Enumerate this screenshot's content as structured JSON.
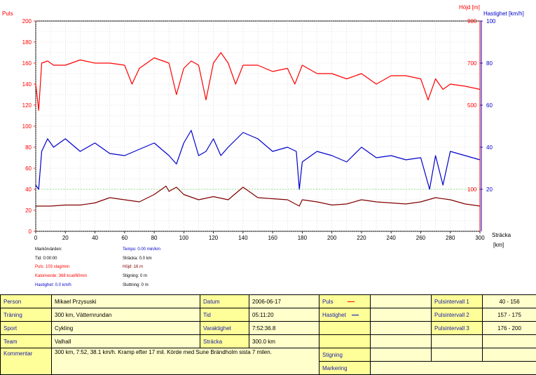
{
  "chart_data": {
    "type": "line",
    "xlabel": "Sträcka",
    "xunit": "[km]",
    "xlim": [
      0,
      300
    ],
    "xticks": [
      0,
      20,
      40,
      60,
      80,
      100,
      120,
      140,
      160,
      180,
      200,
      220,
      240,
      260,
      280,
      300
    ],
    "left_axis": {
      "label": "Puls",
      "ylim": [
        0,
        200
      ],
      "ticks": [
        0,
        20,
        40,
        60,
        80,
        100,
        120,
        140,
        160,
        180,
        200
      ]
    },
    "right_axis_hojd": {
      "label": "Höjd [m]",
      "ticks": [
        100,
        500,
        700,
        900
      ]
    },
    "right_axis_speed": {
      "label": "Hastighet [km/h]",
      "ticks": [
        20,
        40,
        60,
        80,
        100
      ]
    },
    "grid": true,
    "series": [
      {
        "name": "Puls",
        "color": "#ff0000",
        "x": [
          0,
          2,
          4,
          8,
          12,
          20,
          30,
          40,
          50,
          60,
          65,
          70,
          80,
          90,
          95,
          100,
          105,
          110,
          115,
          120,
          125,
          130,
          135,
          140,
          150,
          160,
          170,
          175,
          180,
          190,
          200,
          210,
          220,
          230,
          240,
          250,
          260,
          265,
          270,
          275,
          280,
          290,
          300
        ],
        "y": [
          140,
          115,
          160,
          162,
          158,
          158,
          163,
          160,
          160,
          158,
          140,
          155,
          165,
          160,
          130,
          155,
          162,
          158,
          125,
          160,
          170,
          160,
          140,
          158,
          158,
          152,
          155,
          140,
          158,
          150,
          150,
          145,
          150,
          140,
          148,
          148,
          145,
          125,
          145,
          135,
          140,
          138,
          135
        ]
      },
      {
        "name": "Hastighet",
        "color": "#0000cc",
        "x": [
          0,
          2,
          4,
          8,
          12,
          20,
          30,
          40,
          50,
          60,
          70,
          80,
          90,
          95,
          100,
          105,
          110,
          115,
          120,
          125,
          130,
          140,
          150,
          160,
          170,
          176,
          178,
          180,
          190,
          200,
          210,
          220,
          230,
          240,
          250,
          260,
          266,
          270,
          275,
          280,
          290,
          300
        ],
        "y": [
          22,
          20,
          38,
          44,
          40,
          44,
          38,
          42,
          37,
          36,
          39,
          42,
          36,
          32,
          42,
          48,
          36,
          38,
          44,
          36,
          40,
          47,
          44,
          38,
          40,
          38,
          20,
          33,
          38,
          36,
          33,
          40,
          35,
          36,
          34,
          35,
          20,
          36,
          22,
          38,
          36,
          34
        ]
      },
      {
        "name": "Höjd",
        "color": "#800000",
        "x": [
          0,
          10,
          20,
          30,
          40,
          50,
          60,
          70,
          80,
          88,
          90,
          95,
          100,
          110,
          120,
          130,
          140,
          150,
          160,
          170,
          178,
          180,
          190,
          200,
          210,
          220,
          230,
          240,
          250,
          260,
          270,
          280,
          290,
          300
        ],
        "y": [
          24,
          24,
          25,
          25,
          27,
          32,
          30,
          28,
          35,
          43,
          38,
          42,
          35,
          30,
          33,
          30,
          42,
          32,
          31,
          30,
          24,
          30,
          28,
          25,
          26,
          30,
          28,
          27,
          26,
          28,
          32,
          30,
          26,
          24
        ]
      }
    ]
  },
  "markers": {
    "heading": "Markörvärden:",
    "tid": "Tid: 0:00:00",
    "puls": "Puls: 103 slag/min",
    "kalori": "Kaloriverde: 368 kcal/60min",
    "hastighet": "Hastighet: 0.0 km/h",
    "tempo": "Tempo: 0.00 min/km",
    "stracka": "Sträcka: 0.0 km",
    "hojd": "Höjd: 16 m",
    "stigning": "Stigning: 0 m",
    "sluttning": "Sluttning: 0 m"
  },
  "info": {
    "person_label": "Person",
    "person_value": "Mikael Przysuski",
    "traning_label": "Träning",
    "traning_value": "300 km, Vätternrundan",
    "sport_label": "Sport",
    "sport_value": "Cykling",
    "team_label": "Team",
    "team_value": "Valhall",
    "kommentar_label": "Kommentar",
    "kommentar_value": "300 km, 7:52, 38.1 km/h. Kramp efter 17 mil. Körde med Sune Brändholm sista 7 milen.",
    "datum_label": "Datum",
    "datum_value": "2006-06-17",
    "tid_label": "Tid",
    "tid_value": "05:11:20",
    "varaktighet_label": "Varaktighet",
    "varaktighet_value": "7:52:36.8",
    "stracka_label": "Sträcka",
    "stracka_value": "300.0 km",
    "puls_label": "Puls",
    "hastighet_label": "Hastighet",
    "stigning_label": "Stigning",
    "markering_label": "Markering",
    "pi1_label": "Pulsintervall 1",
    "pi1_value": "40 - 156",
    "pi2_label": "Pulsintervall 2",
    "pi2_value": "157 - 175",
    "pi3_label": "Pulsintervall 3",
    "pi3_value": "176 - 200",
    "colors": {
      "puls": "#ff0000",
      "hastighet": "#0000cc"
    }
  }
}
